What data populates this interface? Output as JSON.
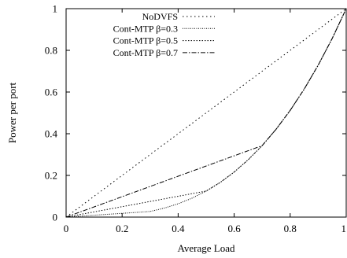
{
  "chart_data": {
    "type": "line",
    "xlabel": "Average Load",
    "ylabel": "Power per port",
    "xlim": [
      0,
      1
    ],
    "ylim": [
      0,
      1
    ],
    "xticks": [
      "0",
      "0.2",
      "0.4",
      "0.6",
      "0.8",
      "1"
    ],
    "yticks": [
      "0",
      "0.2",
      "0.4",
      "0.6",
      "0.8",
      "1"
    ],
    "legend_position": "top-left",
    "grid": false,
    "series": [
      {
        "name": "NoDVFS",
        "x": [
          0,
          1
        ],
        "y": [
          0,
          1
        ]
      },
      {
        "name": "Cont-MTP β=0.3",
        "x": [
          0,
          0.3,
          0.35,
          0.4,
          0.45,
          0.5,
          0.55,
          0.6,
          0.65,
          0.7,
          0.75,
          0.8,
          0.85,
          0.9,
          0.95,
          1
        ],
        "y": [
          0,
          0.027,
          0.043,
          0.064,
          0.091,
          0.125,
          0.166,
          0.216,
          0.275,
          0.343,
          0.422,
          0.512,
          0.614,
          0.729,
          0.857,
          1
        ]
      },
      {
        "name": "Cont-MTP β=0.5",
        "x": [
          0,
          0.5,
          0.55,
          0.6,
          0.65,
          0.7,
          0.75,
          0.8,
          0.85,
          0.9,
          0.95,
          1
        ],
        "y": [
          0,
          0.125,
          0.166,
          0.216,
          0.275,
          0.343,
          0.422,
          0.512,
          0.614,
          0.729,
          0.857,
          1
        ]
      },
      {
        "name": "Cont-MTP β=0.7",
        "x": [
          0,
          0.7,
          0.75,
          0.8,
          0.85,
          0.9,
          0.95,
          1
        ],
        "y": [
          0,
          0.343,
          0.422,
          0.512,
          0.614,
          0.729,
          0.857,
          1
        ]
      }
    ]
  }
}
